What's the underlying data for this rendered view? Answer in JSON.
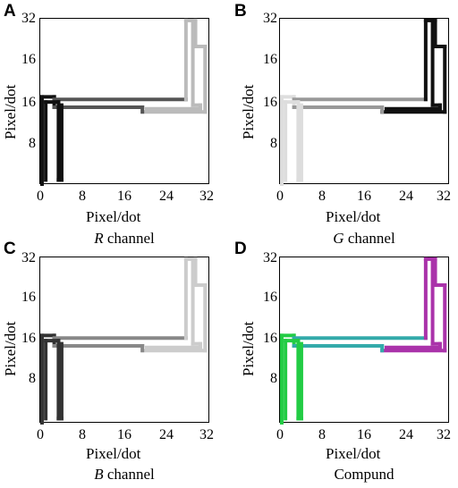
{
  "chart_data": [
    {
      "type": "line",
      "panel": "A",
      "caption_italic": "R",
      "caption_rest": " channel",
      "xlabel": "Pixel/dot",
      "ylabel": "Pixel/dot",
      "xticks": [
        "0",
        "8",
        "16",
        "24",
        "32"
      ],
      "yticks": [
        "32",
        "16",
        "16",
        "8"
      ],
      "xlim": [
        0,
        32
      ],
      "ylim": [
        0,
        32
      ],
      "colors": [
        "#111111",
        "#555555",
        "#bbbbbb"
      ]
    },
    {
      "type": "line",
      "panel": "B",
      "caption_italic": "G",
      "caption_rest": " channel",
      "xlabel": "Pixel/dot",
      "ylabel": "Pixel/dot",
      "xticks": [
        "0",
        "8",
        "16",
        "24",
        "32"
      ],
      "yticks": [
        "32",
        "16",
        "16",
        "8"
      ],
      "xlim": [
        0,
        32
      ],
      "ylim": [
        0,
        32
      ],
      "colors": [
        "#dddddd",
        "#999999",
        "#111111"
      ]
    },
    {
      "type": "line",
      "panel": "C",
      "caption_italic": "B",
      "caption_rest": " channel",
      "xlabel": "Pixel/dot",
      "ylabel": "Pixel/dot",
      "xticks": [
        "0",
        "8",
        "16",
        "24",
        "32"
      ],
      "yticks": [
        "32",
        "16",
        "16",
        "8"
      ],
      "xlim": [
        0,
        32
      ],
      "ylim": [
        0,
        32
      ],
      "colors": [
        "#333333",
        "#888888",
        "#cccccc"
      ]
    },
    {
      "type": "line",
      "panel": "D",
      "caption_italic": "",
      "caption_rest": "Compund",
      "xlabel": "Pixel/dot",
      "ylabel": "Pixel/dot",
      "xticks": [
        "0",
        "8",
        "16",
        "24",
        "32"
      ],
      "yticks": [
        "32",
        "16",
        "16",
        "8"
      ],
      "xlim": [
        0,
        32
      ],
      "ylim": [
        0,
        32
      ],
      "colors": [
        "#22cc44",
        "#33aaaa",
        "#aa33aa"
      ]
    }
  ]
}
